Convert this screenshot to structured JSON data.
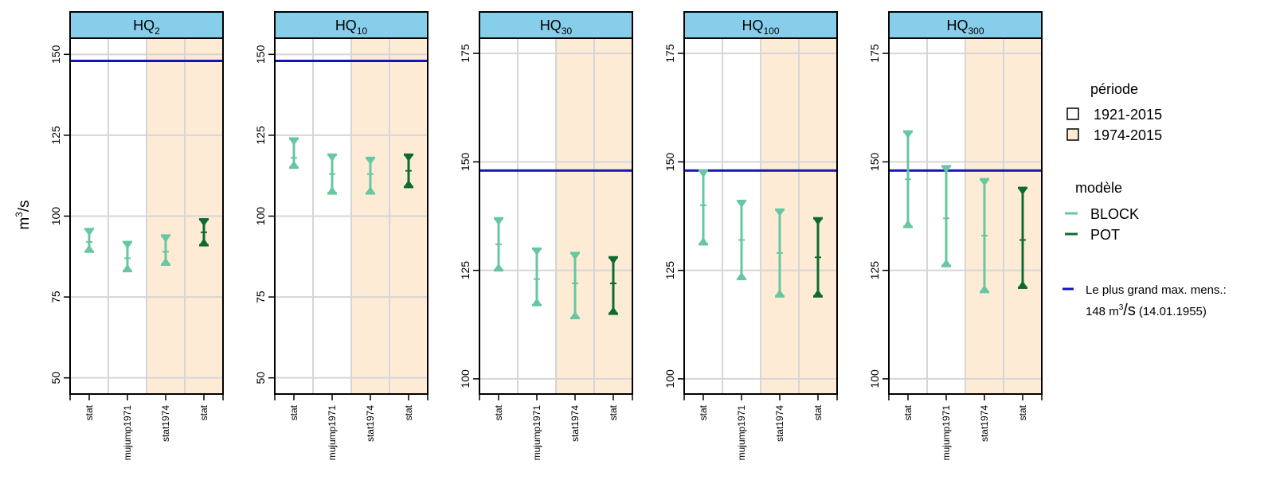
{
  "chart_data": {
    "type": "errorbar",
    "ylabel_base": "m",
    "ylabel_sup": "3",
    "ylabel_tail": "/s",
    "categories": [
      "stat",
      "mujump1971",
      "stat1974",
      "stat"
    ],
    "panels": [
      {
        "title_main": "HQ",
        "title_sub": "2",
        "ylim": [
          45,
          155
        ],
        "yticks": [
          50,
          75,
          100,
          125,
          150
        ],
        "points": [
          {
            "cat": "stat",
            "model": "BLOCK",
            "low": 89,
            "mid": 92,
            "high": 96
          },
          {
            "cat": "mujump1971",
            "model": "BLOCK",
            "low": 83,
            "mid": 87,
            "high": 92
          },
          {
            "cat": "stat1974",
            "model": "BLOCK",
            "low": 85,
            "mid": 89,
            "high": 94
          },
          {
            "cat": "stat",
            "model": "POT",
            "low": 91,
            "mid": 95,
            "high": 99
          }
        ]
      },
      {
        "title_main": "HQ",
        "title_sub": "10",
        "ylim": [
          45,
          155
        ],
        "yticks": [
          50,
          75,
          100,
          125,
          150
        ],
        "points": [
          {
            "cat": "stat",
            "model": "BLOCK",
            "low": 115,
            "mid": 118,
            "high": 124
          },
          {
            "cat": "mujump1971",
            "model": "BLOCK",
            "low": 107,
            "mid": 113,
            "high": 119
          },
          {
            "cat": "stat1974",
            "model": "BLOCK",
            "low": 107,
            "mid": 113,
            "high": 118
          },
          {
            "cat": "stat",
            "model": "POT",
            "low": 109,
            "mid": 114,
            "high": 119
          }
        ]
      },
      {
        "title_main": "HQ",
        "title_sub": "30",
        "ylim": [
          96.5,
          178.5
        ],
        "yticks": [
          100,
          125,
          150,
          175
        ],
        "points": [
          {
            "cat": "stat",
            "model": "BLOCK",
            "low": 125,
            "mid": 131,
            "high": 137
          },
          {
            "cat": "mujump1971",
            "model": "BLOCK",
            "low": 117,
            "mid": 123,
            "high": 130
          },
          {
            "cat": "stat1974",
            "model": "BLOCK",
            "low": 114,
            "mid": 122,
            "high": 129
          },
          {
            "cat": "stat",
            "model": "POT",
            "low": 115,
            "mid": 122,
            "high": 128
          }
        ]
      },
      {
        "title_main": "HQ",
        "title_sub": "100",
        "ylim": [
          96.5,
          178.5
        ],
        "yticks": [
          100,
          125,
          150,
          175
        ],
        "points": [
          {
            "cat": "stat",
            "model": "BLOCK",
            "low": 131,
            "mid": 140,
            "high": 148
          },
          {
            "cat": "mujump1971",
            "model": "BLOCK",
            "low": 123,
            "mid": 132,
            "high": 141
          },
          {
            "cat": "stat1974",
            "model": "BLOCK",
            "low": 119,
            "mid": 129,
            "high": 139
          },
          {
            "cat": "stat",
            "model": "POT",
            "low": 119,
            "mid": 128,
            "high": 137
          }
        ]
      },
      {
        "title_main": "HQ",
        "title_sub": "300",
        "ylim": [
          96.5,
          178.5
        ],
        "yticks": [
          100,
          125,
          150,
          175
        ],
        "points": [
          {
            "cat": "stat",
            "model": "BLOCK",
            "low": 135,
            "mid": 146,
            "high": 157
          },
          {
            "cat": "mujump1971",
            "model": "BLOCK",
            "low": 126,
            "mid": 137,
            "high": 149
          },
          {
            "cat": "stat1974",
            "model": "BLOCK",
            "low": 120,
            "mid": 133,
            "high": 146
          },
          {
            "cat": "stat",
            "model": "POT",
            "low": 121,
            "mid": 132,
            "high": 144
          }
        ]
      }
    ],
    "reference_line": {
      "value": 148,
      "color": "#1414b4",
      "label_line1": "Le plus grand max. mens.:",
      "label_line2_value": "148 m",
      "label_line2_sup": "3",
      "label_line2_unit": "/s",
      "label_line2_date": "(14.01.1955)"
    },
    "legend": {
      "period_title": "période",
      "periods": [
        {
          "label": "1921-2015",
          "color": "#ffffff"
        },
        {
          "label": "1974-2015",
          "color": "#fdebd6"
        }
      ],
      "model_title": "modèle",
      "models": [
        {
          "label": "BLOCK",
          "color": "#66c7a0"
        },
        {
          "label": "POT",
          "color": "#0e6b30"
        }
      ],
      "placement": "right"
    },
    "strip_color": "#87ceeb",
    "shaded_categories_from": 2
  }
}
